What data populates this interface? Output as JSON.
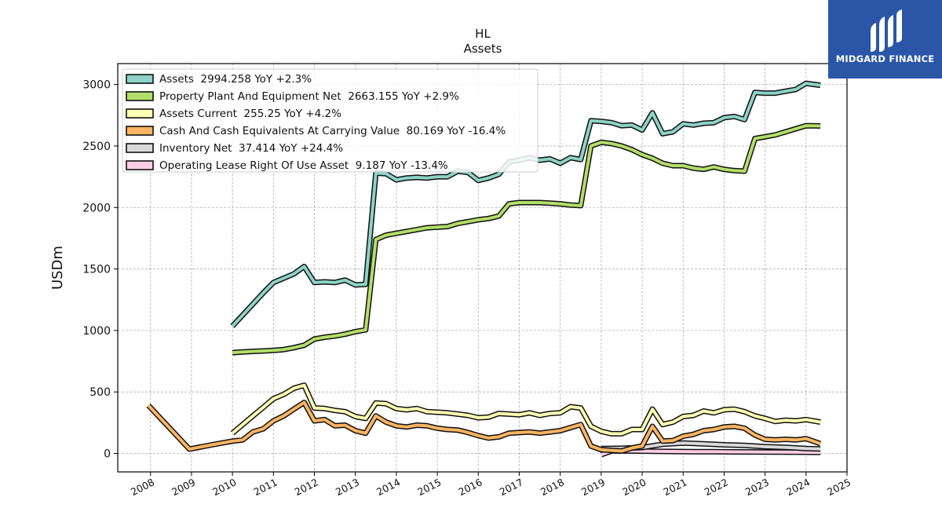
{
  "brand": {
    "name": "MIDGARD FINANCE",
    "bg": "#2b56a8"
  },
  "chart_data": {
    "type": "line",
    "title": "HL",
    "subtitle": "Assets",
    "ylabel": "USDm",
    "xlabel": "",
    "xlim": [
      2007.2,
      2025.0
    ],
    "ylim": [
      -150,
      3170
    ],
    "grid": true,
    "legend_position": "top-left",
    "x_ticks": [
      2008,
      2009,
      2010,
      2011,
      2012,
      2013,
      2014,
      2015,
      2016,
      2017,
      2018,
      2019,
      2020,
      2021,
      2022,
      2023,
      2024,
      2025
    ],
    "y_ticks": [
      0,
      500,
      1000,
      1500,
      2000,
      2500,
      3000
    ],
    "series": [
      {
        "name": "Assets",
        "legend": "Assets  2994.258 YoY +2.3%",
        "color": "#8dd3c7",
        "points": [
          [
            2010.0,
            1035
          ],
          [
            2010.25,
            1125
          ],
          [
            2010.5,
            1215
          ],
          [
            2010.75,
            1305
          ],
          [
            2011.0,
            1390
          ],
          [
            2011.25,
            1425
          ],
          [
            2011.5,
            1460
          ],
          [
            2011.75,
            1520
          ],
          [
            2012.0,
            1390
          ],
          [
            2012.25,
            1395
          ],
          [
            2012.5,
            1390
          ],
          [
            2012.75,
            1410
          ],
          [
            2013.0,
            1370
          ],
          [
            2013.25,
            1375
          ],
          [
            2013.5,
            2280
          ],
          [
            2013.75,
            2275
          ],
          [
            2014.0,
            2225
          ],
          [
            2014.25,
            2240
          ],
          [
            2014.5,
            2245
          ],
          [
            2014.75,
            2240
          ],
          [
            2015.0,
            2250
          ],
          [
            2015.25,
            2250
          ],
          [
            2015.5,
            2295
          ],
          [
            2015.75,
            2285
          ],
          [
            2016.0,
            2220
          ],
          [
            2016.25,
            2240
          ],
          [
            2016.5,
            2270
          ],
          [
            2016.75,
            2370
          ],
          [
            2017.0,
            2385
          ],
          [
            2017.25,
            2405
          ],
          [
            2017.5,
            2385
          ],
          [
            2017.75,
            2395
          ],
          [
            2018.0,
            2360
          ],
          [
            2018.25,
            2405
          ],
          [
            2018.5,
            2390
          ],
          [
            2018.75,
            2705
          ],
          [
            2019.0,
            2700
          ],
          [
            2019.25,
            2690
          ],
          [
            2019.5,
            2665
          ],
          [
            2019.75,
            2670
          ],
          [
            2020.0,
            2630
          ],
          [
            2020.25,
            2770
          ],
          [
            2020.5,
            2600
          ],
          [
            2020.75,
            2615
          ],
          [
            2021.0,
            2680
          ],
          [
            2021.25,
            2670
          ],
          [
            2021.5,
            2685
          ],
          [
            2021.75,
            2690
          ],
          [
            2022.0,
            2730
          ],
          [
            2022.25,
            2740
          ],
          [
            2022.5,
            2715
          ],
          [
            2022.75,
            2935
          ],
          [
            2023.0,
            2930
          ],
          [
            2023.25,
            2930
          ],
          [
            2023.5,
            2945
          ],
          [
            2023.75,
            2960
          ],
          [
            2024.0,
            3010
          ],
          [
            2024.35,
            2994
          ]
        ]
      },
      {
        "name": "Property Plant And Equipment Net",
        "legend": "Property Plant And Equipment Net  2663.155 YoY +2.9%",
        "color": "#b3de69",
        "points": [
          [
            2010.0,
            820
          ],
          [
            2010.25,
            825
          ],
          [
            2010.5,
            830
          ],
          [
            2010.75,
            833
          ],
          [
            2011.0,
            838
          ],
          [
            2011.25,
            845
          ],
          [
            2011.5,
            860
          ],
          [
            2011.75,
            880
          ],
          [
            2012.0,
            930
          ],
          [
            2012.25,
            945
          ],
          [
            2012.5,
            955
          ],
          [
            2012.75,
            970
          ],
          [
            2013.0,
            990
          ],
          [
            2013.25,
            1005
          ],
          [
            2013.5,
            1740
          ],
          [
            2013.75,
            1775
          ],
          [
            2014.0,
            1790
          ],
          [
            2014.25,
            1805
          ],
          [
            2014.5,
            1820
          ],
          [
            2014.75,
            1835
          ],
          [
            2015.0,
            1840
          ],
          [
            2015.25,
            1845
          ],
          [
            2015.5,
            1870
          ],
          [
            2015.75,
            1885
          ],
          [
            2016.0,
            1900
          ],
          [
            2016.25,
            1910
          ],
          [
            2016.5,
            1930
          ],
          [
            2016.75,
            2030
          ],
          [
            2017.0,
            2040
          ],
          [
            2017.25,
            2040
          ],
          [
            2017.5,
            2040
          ],
          [
            2017.75,
            2035
          ],
          [
            2018.0,
            2030
          ],
          [
            2018.25,
            2020
          ],
          [
            2018.5,
            2015
          ],
          [
            2018.75,
            2500
          ],
          [
            2019.0,
            2530
          ],
          [
            2019.25,
            2520
          ],
          [
            2019.5,
            2500
          ],
          [
            2019.75,
            2470
          ],
          [
            2020.0,
            2430
          ],
          [
            2020.25,
            2400
          ],
          [
            2020.5,
            2360
          ],
          [
            2020.75,
            2340
          ],
          [
            2021.0,
            2340
          ],
          [
            2021.25,
            2320
          ],
          [
            2021.5,
            2310
          ],
          [
            2021.75,
            2330
          ],
          [
            2022.0,
            2310
          ],
          [
            2022.25,
            2300
          ],
          [
            2022.5,
            2295
          ],
          [
            2022.75,
            2560
          ],
          [
            2023.0,
            2575
          ],
          [
            2023.25,
            2590
          ],
          [
            2023.5,
            2615
          ],
          [
            2023.75,
            2640
          ],
          [
            2024.0,
            2665
          ],
          [
            2024.35,
            2663
          ]
        ]
      },
      {
        "name": "Assets Current",
        "legend": "Assets Current  255.25 YoY +4.2%",
        "color": "#ffffb3",
        "points": [
          [
            2010.0,
            165
          ],
          [
            2010.25,
            235
          ],
          [
            2010.5,
            305
          ],
          [
            2010.75,
            375
          ],
          [
            2011.0,
            445
          ],
          [
            2011.25,
            480
          ],
          [
            2011.5,
            530
          ],
          [
            2011.75,
            555
          ],
          [
            2012.0,
            370
          ],
          [
            2012.25,
            365
          ],
          [
            2012.5,
            350
          ],
          [
            2012.75,
            340
          ],
          [
            2013.0,
            300
          ],
          [
            2013.25,
            285
          ],
          [
            2013.5,
            410
          ],
          [
            2013.75,
            405
          ],
          [
            2014.0,
            365
          ],
          [
            2014.25,
            355
          ],
          [
            2014.5,
            365
          ],
          [
            2014.75,
            340
          ],
          [
            2015.0,
            335
          ],
          [
            2015.25,
            330
          ],
          [
            2015.5,
            320
          ],
          [
            2015.75,
            310
          ],
          [
            2016.0,
            290
          ],
          [
            2016.25,
            295
          ],
          [
            2016.5,
            325
          ],
          [
            2016.75,
            320
          ],
          [
            2017.0,
            315
          ],
          [
            2017.25,
            330
          ],
          [
            2017.5,
            310
          ],
          [
            2017.75,
            325
          ],
          [
            2018.0,
            330
          ],
          [
            2018.25,
            380
          ],
          [
            2018.5,
            370
          ],
          [
            2018.75,
            220
          ],
          [
            2019.0,
            180
          ],
          [
            2019.25,
            160
          ],
          [
            2019.5,
            160
          ],
          [
            2019.75,
            195
          ],
          [
            2020.0,
            195
          ],
          [
            2020.25,
            360
          ],
          [
            2020.5,
            235
          ],
          [
            2020.75,
            255
          ],
          [
            2021.0,
            300
          ],
          [
            2021.25,
            310
          ],
          [
            2021.5,
            345
          ],
          [
            2021.75,
            330
          ],
          [
            2022.0,
            355
          ],
          [
            2022.25,
            360
          ],
          [
            2022.5,
            340
          ],
          [
            2022.75,
            305
          ],
          [
            2023.0,
            285
          ],
          [
            2023.25,
            260
          ],
          [
            2023.5,
            270
          ],
          [
            2023.75,
            265
          ],
          [
            2024.0,
            275
          ],
          [
            2024.35,
            255
          ]
        ]
      },
      {
        "name": "Cash And Cash Equivalents At Carrying Value",
        "legend": "Cash And Cash Equivalents At Carrying Value  80.169 YoY -16.4%",
        "color": "#fdb462",
        "points": [
          [
            2007.95,
            390
          ],
          [
            2008.95,
            35
          ],
          [
            2009.5,
            70
          ],
          [
            2010.0,
            100
          ],
          [
            2010.25,
            110
          ],
          [
            2010.5,
            175
          ],
          [
            2010.75,
            200
          ],
          [
            2011.0,
            265
          ],
          [
            2011.25,
            305
          ],
          [
            2011.5,
            360
          ],
          [
            2011.75,
            415
          ],
          [
            2012.0,
            265
          ],
          [
            2012.25,
            275
          ],
          [
            2012.5,
            225
          ],
          [
            2012.75,
            230
          ],
          [
            2013.0,
            185
          ],
          [
            2013.25,
            165
          ],
          [
            2013.5,
            305
          ],
          [
            2013.75,
            255
          ],
          [
            2014.0,
            225
          ],
          [
            2014.25,
            215
          ],
          [
            2014.5,
            230
          ],
          [
            2014.75,
            225
          ],
          [
            2015.0,
            205
          ],
          [
            2015.25,
            195
          ],
          [
            2015.5,
            190
          ],
          [
            2015.75,
            170
          ],
          [
            2016.0,
            145
          ],
          [
            2016.25,
            125
          ],
          [
            2016.5,
            135
          ],
          [
            2016.75,
            165
          ],
          [
            2017.0,
            170
          ],
          [
            2017.25,
            175
          ],
          [
            2017.5,
            165
          ],
          [
            2017.75,
            175
          ],
          [
            2018.0,
            185
          ],
          [
            2018.25,
            210
          ],
          [
            2018.5,
            235
          ],
          [
            2018.75,
            60
          ],
          [
            2019.0,
            30
          ],
          [
            2019.25,
            25
          ],
          [
            2019.5,
            20
          ],
          [
            2019.75,
            45
          ],
          [
            2020.0,
            60
          ],
          [
            2020.25,
            220
          ],
          [
            2020.5,
            100
          ],
          [
            2020.75,
            105
          ],
          [
            2021.0,
            140
          ],
          [
            2021.25,
            155
          ],
          [
            2021.5,
            185
          ],
          [
            2021.75,
            195
          ],
          [
            2022.0,
            215
          ],
          [
            2022.25,
            220
          ],
          [
            2022.5,
            205
          ],
          [
            2022.75,
            150
          ],
          [
            2023.0,
            115
          ],
          [
            2023.25,
            110
          ],
          [
            2023.5,
            115
          ],
          [
            2023.75,
            110
          ],
          [
            2024.0,
            120
          ],
          [
            2024.35,
            80
          ]
        ]
      },
      {
        "name": "Inventory Net",
        "legend": "Inventory Net  37.414 YoY +24.4%",
        "color": "#d9d9d9",
        "points": [
          [
            2019.0,
            40
          ],
          [
            2019.5,
            42
          ],
          [
            2020.0,
            48
          ],
          [
            2020.5,
            75
          ],
          [
            2021.0,
            85
          ],
          [
            2021.5,
            78
          ],
          [
            2022.0,
            70
          ],
          [
            2022.5,
            65
          ],
          [
            2023.0,
            55
          ],
          [
            2023.5,
            50
          ],
          [
            2024.0,
            40
          ],
          [
            2024.35,
            37
          ]
        ]
      },
      {
        "name": "Operating Lease Right Of Use Asset",
        "legend": "Operating Lease Right Of Use Asset  9.187 YoY -13.4%",
        "color": "#fccde5",
        "points": [
          [
            2019.0,
            -10
          ],
          [
            2019.25,
            20
          ],
          [
            2019.75,
            20
          ],
          [
            2020.25,
            18
          ],
          [
            2020.75,
            16
          ],
          [
            2021.25,
            15
          ],
          [
            2021.75,
            14
          ],
          [
            2022.25,
            13
          ],
          [
            2022.75,
            12
          ],
          [
            2023.25,
            11
          ],
          [
            2023.75,
            10
          ],
          [
            2024.35,
            9
          ]
        ]
      }
    ]
  }
}
